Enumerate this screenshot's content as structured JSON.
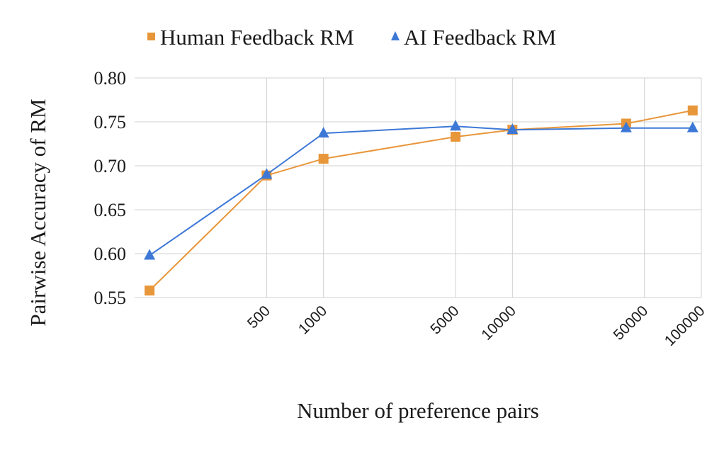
{
  "chart_data": {
    "type": "line",
    "title": "",
    "xlabel": "Number of preference pairs",
    "ylabel": "Pairwise Accuracy of RM",
    "x_scale": "log",
    "xlim": [
      100,
      100000
    ],
    "ylim": [
      0.55,
      0.8
    ],
    "yticks": [
      "0.80",
      "0.75",
      "0.70",
      "0.65",
      "0.60",
      "0.55"
    ],
    "xtick_labels": [
      {
        "value": 500,
        "label": "500"
      },
      {
        "value": 1000,
        "label": "1000"
      },
      {
        "value": 5000,
        "label": "5000"
      },
      {
        "value": 10000,
        "label": "10000"
      },
      {
        "value": 50000,
        "label": "50000"
      },
      {
        "value": 100000,
        "label": "100000"
      }
    ],
    "grid": true,
    "legend_position": "top",
    "series": [
      {
        "name": "Human Feedback RM",
        "color": "#E8963A",
        "marker": "square",
        "points": [
          {
            "x": 120,
            "y": 0.558
          },
          {
            "x": 500,
            "y": 0.689
          },
          {
            "x": 1000,
            "y": 0.708
          },
          {
            "x": 5000,
            "y": 0.733
          },
          {
            "x": 10000,
            "y": 0.741
          },
          {
            "x": 40000,
            "y": 0.748
          },
          {
            "x": 90000,
            "y": 0.763
          }
        ]
      },
      {
        "name": "AI Feedback RM",
        "color": "#3D78D6",
        "marker": "triangle",
        "points": [
          {
            "x": 120,
            "y": 0.598
          },
          {
            "x": 500,
            "y": 0.69
          },
          {
            "x": 1000,
            "y": 0.737
          },
          {
            "x": 5000,
            "y": 0.745
          },
          {
            "x": 10000,
            "y": 0.741
          },
          {
            "x": 40000,
            "y": 0.743
          },
          {
            "x": 90000,
            "y": 0.743
          }
        ]
      }
    ]
  }
}
